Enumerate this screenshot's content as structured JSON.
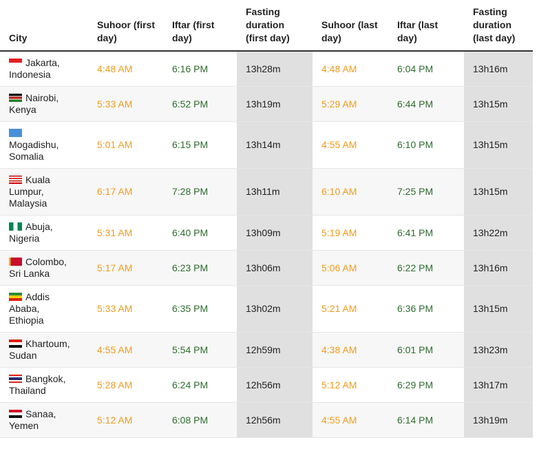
{
  "table": {
    "headers": [
      "City",
      "Suhoor (first day)",
      "Iftar (first day)",
      "Fasting duration (first day)",
      "Suhoor (last day)",
      "Iftar (last day)",
      "Fasting duration (last day)"
    ],
    "rows": [
      [
        "Jakarta, Indonesia",
        "4:48 AM",
        "6:16 PM",
        "13h28m",
        "4:48 AM",
        "6:04 PM",
        "13h16m"
      ],
      [
        "Nairobi, Kenya",
        "5:33 AM",
        "6:52 PM",
        "13h19m",
        "5:29 AM",
        "6:44 PM",
        "13h15m"
      ],
      [
        "Mogadishu, Somalia",
        "5:01 AM",
        "6:15 PM",
        "13h14m",
        "4:55 AM",
        "6:10 PM",
        "13h15m"
      ],
      [
        "Kuala Lumpur, Malaysia",
        "6:17 AM",
        "7:28 PM",
        "13h11m",
        "6:10 AM",
        "7:25 PM",
        "13h15m"
      ],
      [
        "Abuja, Nigeria",
        "5:31 AM",
        "6:40 PM",
        "13h09m",
        "5:19 AM",
        "6:41 PM",
        "13h22m"
      ],
      [
        "Colombo, Sri Lanka",
        "5:17 AM",
        "6:23 PM",
        "13h06m",
        "5:06 AM",
        "6:22 PM",
        "13h16m"
      ],
      [
        "Addis Ababa, Ethiopia",
        "5:33 AM",
        "6:35 PM",
        "13h02m",
        "5:21 AM",
        "6:36 PM",
        "13h15m"
      ],
      [
        "Khartoum, Sudan",
        "4:55 AM",
        "5:54 PM",
        "12h59m",
        "4:38 AM",
        "6:01 PM",
        "13h23m"
      ],
      [
        "Bangkok, Thailand",
        "5:28 AM",
        "6:24 PM",
        "12h56m",
        "5:12 AM",
        "6:29 PM",
        "13h17m"
      ],
      [
        "Sanaa, Yemen",
        "5:12 AM",
        "6:08 PM",
        "12h56m",
        "4:55 AM",
        "6:14 PM",
        "13h19m"
      ]
    ]
  }
}
